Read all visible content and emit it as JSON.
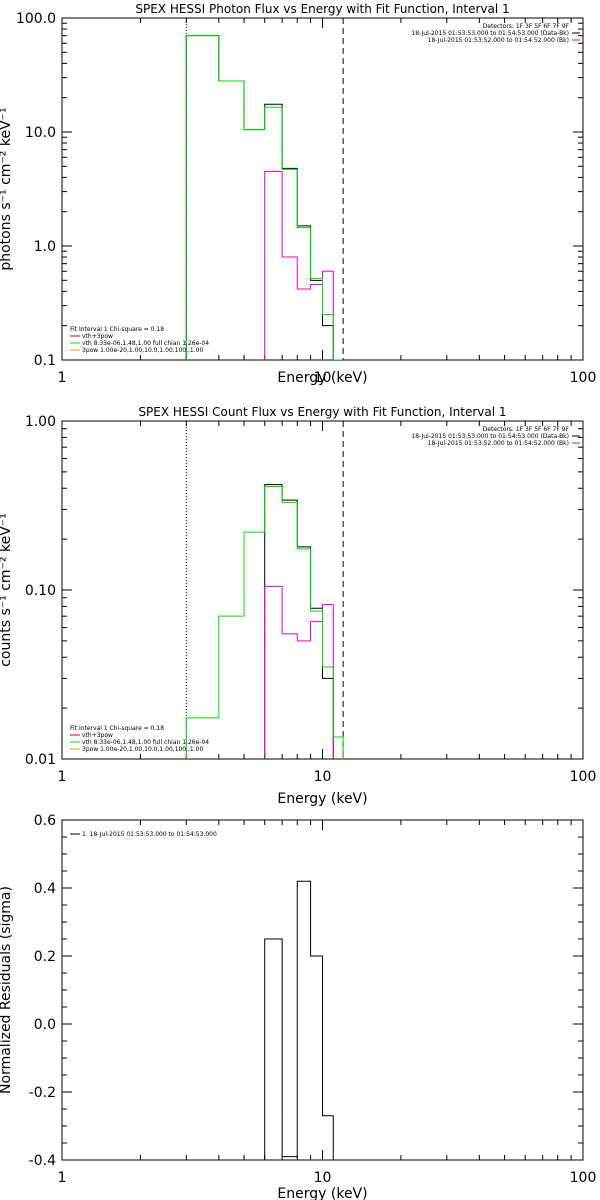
{
  "colors": {
    "black": "#000000",
    "magenta": "#e000e0",
    "green": "#00dd00",
    "orange": "#e0a000",
    "red": "#e00000"
  },
  "chart_data": [
    {
      "type": "line",
      "title": "SPEX HESSI Photon Flux vs Energy with Fit Function, Interval 1",
      "xlabel": "Energy (keV)",
      "ylabel": "photons s⁻¹ cm⁻² keV⁻¹",
      "xscale": "log",
      "yscale": "log",
      "xlim": [
        1,
        100
      ],
      "ylim": [
        0.1,
        100
      ],
      "xticks": [
        {
          "v": 1,
          "label": "1"
        },
        {
          "v": 10,
          "label": "10"
        },
        {
          "v": 100,
          "label": "100"
        }
      ],
      "yticks": [
        {
          "v": 0.1,
          "label": "0.1"
        },
        {
          "v": 1,
          "label": "1.0"
        },
        {
          "v": 10,
          "label": "10.0"
        },
        {
          "v": 100,
          "label": "100.0"
        }
      ],
      "vlines": [
        {
          "x": 3.0,
          "style": "dotted"
        },
        {
          "x": 12.0,
          "style": "dashed"
        }
      ],
      "info": [
        "Detectors: 1F 3F 5F 6F 7F 9F",
        "18-Jul-2015 01:53:53.000 to 01:54:53.000 (Data-Bk)",
        "18-Jul-2015 01:53:52.000 to 01:54:52.000 (Bk)"
      ],
      "info_colors": [
        "#000000",
        "#000000",
        "#e000e0"
      ],
      "legend": [
        {
          "label": "Fit Interval 1    Chi-square = 0.18",
          "color": null
        },
        {
          "label": "vth+3pow",
          "color": "#e00000"
        },
        {
          "label": "vth 8.33e-06,1.48,1.00   full chian 1.26e-04",
          "color": "#00dd00"
        },
        {
          "label": "3pow 1.00e-20,1.00,10.0,1.00,100.,1.00",
          "color": "#e0a000"
        }
      ],
      "series": [
        {
          "color": "#000000",
          "edges": [
            3.0,
            4.0,
            5.0,
            6.0,
            7.0,
            8.0,
            9.0,
            10.0,
            11.0,
            12.0
          ],
          "values": [
            70,
            28,
            10.5,
            17.5,
            4.8,
            1.5,
            0.5,
            0.2,
            0.1
          ]
        },
        {
          "color": "#e000e0",
          "edges": [
            6.0,
            7.0,
            8.0,
            9.0,
            10.0,
            11.0
          ],
          "values": [
            4.5,
            0.8,
            0.42,
            0.46,
            0.6
          ]
        },
        {
          "color": "#00dd00",
          "edges": [
            3.0,
            4.0,
            5.0,
            6.0,
            7.0,
            8.0,
            9.0,
            10.0,
            11.0,
            12.0
          ],
          "values": [
            70,
            28,
            10.5,
            16.5,
            4.7,
            1.45,
            0.52,
            0.25,
            0.1
          ]
        }
      ]
    },
    {
      "type": "line",
      "title": "SPEX HESSI Count Flux vs Energy with Fit Function, Interval 1",
      "xlabel": "Energy (keV)",
      "ylabel": "counts s⁻¹ cm⁻² keV⁻¹",
      "xscale": "log",
      "yscale": "log",
      "xlim": [
        1,
        100
      ],
      "ylim": [
        0.01,
        1
      ],
      "xticks": [
        {
          "v": 1,
          "label": "1"
        },
        {
          "v": 10,
          "label": "10"
        },
        {
          "v": 100,
          "label": "100"
        }
      ],
      "yticks": [
        {
          "v": 0.01,
          "label": "0.01"
        },
        {
          "v": 0.1,
          "label": "0.10"
        },
        {
          "v": 1,
          "label": "1.00"
        }
      ],
      "vlines": [
        {
          "x": 3.0,
          "style": "dotted"
        },
        {
          "x": 12.0,
          "style": "dashed"
        }
      ],
      "info": [
        "Detectors: 1F 3F 5F 6F 7F 9F",
        "18-Jul-2015 01:53:53.000 to 01:54:53.000 (Data-Bk)",
        "18-Jul-2015 01:53:52.000 to 01:54:52.000 (Bk)"
      ],
      "info_colors": [
        "#000000",
        "#000000",
        "#e000e0"
      ],
      "legend": [
        {
          "label": "Fit Interval 1    Chi-square = 0.18",
          "color": null
        },
        {
          "label": "vth+3pow",
          "color": "#e00000"
        },
        {
          "label": "vth 8.33e-06,1.48,1.00   full chian 1.26e-04",
          "color": "#00dd00"
        },
        {
          "label": "3pow 1.00e-20,1.00,10.0,1.00,100.,1.00",
          "color": "#e0a000"
        }
      ],
      "series": [
        {
          "color": "#000000",
          "edges": [
            6.0,
            7.0,
            8.0,
            9.0,
            10.0,
            11.0,
            12.0
          ],
          "values": [
            0.42,
            0.34,
            0.18,
            0.078,
            0.03,
            0.009
          ]
        },
        {
          "color": "#e000e0",
          "edges": [
            6.0,
            7.0,
            8.0,
            9.0,
            10.0,
            11.0
          ],
          "values": [
            0.105,
            0.055,
            0.05,
            0.065,
            0.082
          ]
        },
        {
          "color": "#00dd00",
          "edges": [
            3.0,
            4.0,
            5.0,
            6.0,
            7.0,
            8.0,
            9.0,
            10.0,
            11.0,
            12.0
          ],
          "values": [
            0.0175,
            0.07,
            0.22,
            0.41,
            0.33,
            0.175,
            0.075,
            0.035,
            0.0135
          ]
        }
      ]
    },
    {
      "type": "line",
      "title": "",
      "xlabel": "Energy (keV)",
      "ylabel": "Normalized Residuals (sigma)",
      "xscale": "log",
      "yscale": "linear",
      "xlim": [
        1,
        100
      ],
      "ylim": [
        -0.4,
        0.6
      ],
      "xticks": [
        {
          "v": 1,
          "label": "1"
        },
        {
          "v": 10,
          "label": "10"
        },
        {
          "v": 100,
          "label": "100"
        }
      ],
      "yticks": [
        {
          "v": -0.4,
          "label": "-0.4"
        },
        {
          "v": -0.2,
          "label": "-0.2"
        },
        {
          "v": 0,
          "label": "0.0"
        },
        {
          "v": 0.2,
          "label": "0.2"
        },
        {
          "v": 0.4,
          "label": "0.4"
        },
        {
          "v": 0.6,
          "label": "0.6"
        }
      ],
      "vlines": [],
      "info": [],
      "info_colors": [],
      "legend": [
        {
          "label": "1. 18-Jul-2015 01:53:53.000 to 01:54:53.000",
          "color": "#000000"
        }
      ],
      "series": [
        {
          "color": "#000000",
          "edges": [
            6.0,
            7.0,
            8.0,
            9.0,
            10.0,
            11.0
          ],
          "values": [
            0.25,
            -0.39,
            0.42,
            0.2,
            -0.27
          ]
        }
      ]
    }
  ]
}
